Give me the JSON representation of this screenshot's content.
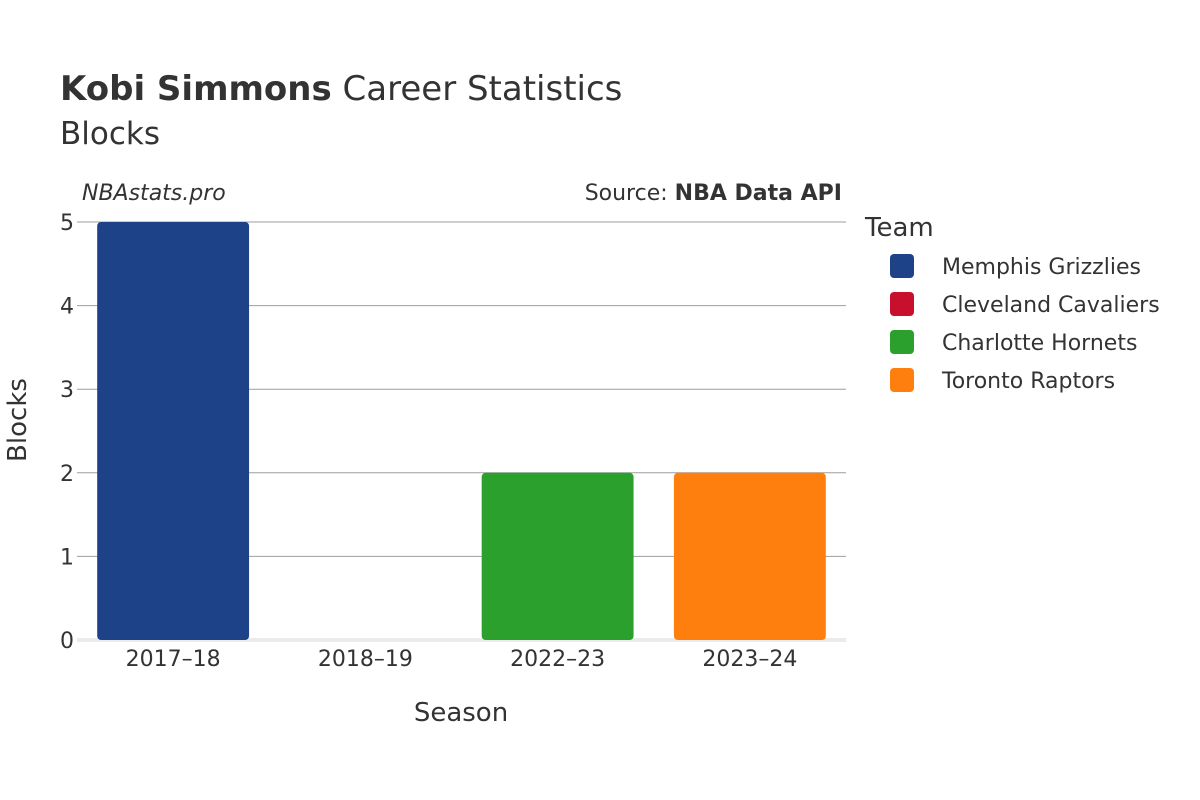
{
  "chart_data": {
    "type": "bar",
    "title_bold": "Kobi Simmons",
    "title_rest": "Career Statistics",
    "subtitle": "Blocks",
    "watermark": "NBAstats.pro",
    "source_prefix": "Source: ",
    "source_name": "NBA Data API",
    "xlabel": "Season",
    "ylabel": "Blocks",
    "ylim": [
      0,
      5
    ],
    "yticks": [
      0,
      1,
      2,
      3,
      4,
      5
    ],
    "grid": true,
    "categories": [
      "2017–18",
      "2018–19",
      "2022–23",
      "2023–24"
    ],
    "bars": [
      {
        "season": "2017–18",
        "team": "Memphis Grizzlies",
        "value": 5
      },
      {
        "season": "2018–19",
        "team": "Cleveland Cavaliers",
        "value": 0
      },
      {
        "season": "2022–23",
        "team": "Charlotte Hornets",
        "value": 2
      },
      {
        "season": "2023–24",
        "team": "Toronto Raptors",
        "value": 2
      }
    ],
    "legend": {
      "title": "Team",
      "position": "right",
      "entries": [
        {
          "name": "Memphis Grizzlies",
          "color": "#1d4288"
        },
        {
          "name": "Cleveland Cavaliers",
          "color": "#c8102e"
        },
        {
          "name": "Charlotte Hornets",
          "color": "#2ca02c"
        },
        {
          "name": "Toronto Raptors",
          "color": "#ff7f0e"
        }
      ]
    }
  }
}
